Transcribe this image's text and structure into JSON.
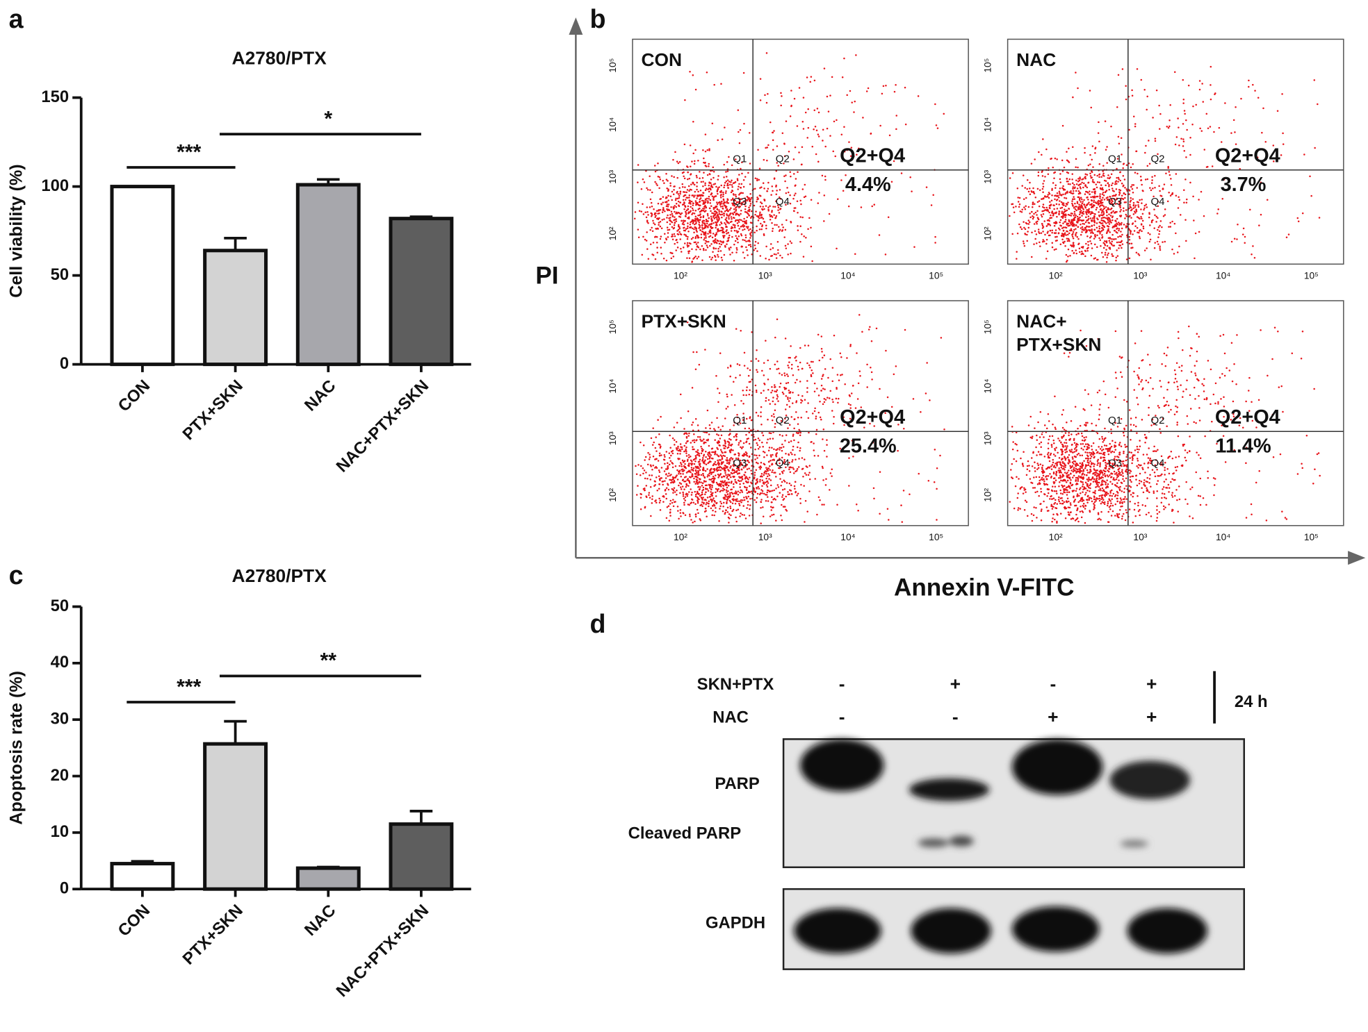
{
  "panel_labels": [
    "a",
    "b",
    "c",
    "d"
  ],
  "chart_data": [
    {
      "type": "bar",
      "title": "A2780/PTX",
      "y_label": "Cell viability (%)",
      "categories": [
        "CON",
        "PTX+SKN",
        "NAC",
        "NAC+PTX+SKN"
      ],
      "values": [
        100,
        64,
        101,
        82
      ],
      "errors": [
        0,
        7,
        3,
        1
      ],
      "colors": [
        "#ffffff",
        "#d3d3d3",
        "#a7a7ac",
        "#5e5e5e"
      ],
      "ylim": [
        0,
        150
      ],
      "yticks": [
        0,
        50,
        100,
        150
      ],
      "significance": [
        {
          "label": "***",
          "from": 0,
          "to": 1
        },
        {
          "label": "*",
          "from": 1,
          "to": 3
        }
      ]
    },
    {
      "type": "bar",
      "title": "A2780/PTX",
      "y_label": "Apoptosis rate (%)",
      "categories": [
        "CON",
        "PTX+SKN",
        "NAC",
        "NAC+PTX+SKN"
      ],
      "values": [
        4.5,
        25.7,
        3.7,
        11.5
      ],
      "errors": [
        0.4,
        4,
        0.2,
        2.3
      ],
      "colors": [
        "#ffffff",
        "#d3d3d3",
        "#a7a7ac",
        "#5e5e5e"
      ],
      "ylim": [
        0,
        50
      ],
      "yticks": [
        0,
        10,
        20,
        30,
        40,
        50
      ],
      "significance": [
        {
          "label": "***",
          "from": 0,
          "to": 1
        },
        {
          "label": "**",
          "from": 1,
          "to": 3
        }
      ]
    }
  ],
  "flow": {
    "y_label": "PI",
    "x_label": "Annexin V-FITC",
    "quadrant_labels": [
      "Q1",
      "Q2",
      "Q3",
      "Q4"
    ],
    "axis_tick_labels": [
      "10²",
      "10³",
      "10⁴",
      "10⁵"
    ],
    "panels": [
      {
        "name_lines": [
          "CON"
        ],
        "stat_label": "Q2+Q4",
        "value": 4.4,
        "value_label": "4.4%"
      },
      {
        "name_lines": [
          "NAC"
        ],
        "stat_label": "Q2+Q4",
        "value": 3.7,
        "value_label": "3.7%"
      },
      {
        "name_lines": [
          "PTX+SKN"
        ],
        "stat_label": "Q2+Q4",
        "value": 25.4,
        "value_label": "25.4%"
      },
      {
        "name_lines": [
          "NAC+",
          "PTX+SKN"
        ],
        "stat_label": "Q2+Q4",
        "value": 11.4,
        "value_label": "11.4%"
      }
    ]
  },
  "blot": {
    "rows": [
      {
        "label": "SKN+PTX",
        "lanes": [
          "-",
          "+",
          "-",
          "+"
        ]
      },
      {
        "label": "NAC",
        "lanes": [
          "-",
          "-",
          "+",
          "+"
        ]
      }
    ],
    "time": "24 h",
    "bands": [
      "PARP",
      "Cleaved PARP",
      "GAPDH"
    ]
  }
}
